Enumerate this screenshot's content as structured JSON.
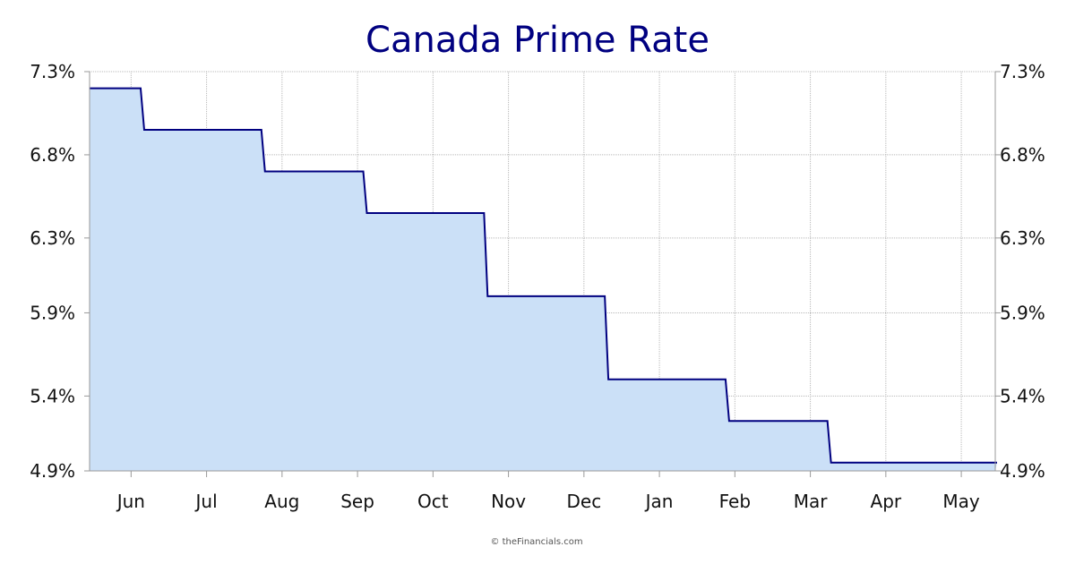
{
  "chart_data": {
    "type": "area",
    "title": "Canada Prime Rate",
    "xlabel": "",
    "ylabel": "",
    "step": true,
    "y_ticks": [
      "4.9%",
      "5.4%",
      "5.9%",
      "6.3%",
      "6.8%",
      "7.3%"
    ],
    "y_tick_values": [
      4.9,
      5.35,
      5.85,
      6.3,
      6.8,
      7.3
    ],
    "ylim": [
      4.9,
      7.3
    ],
    "xlim": [
      0,
      12
    ],
    "x_ticks": [
      "Jun",
      "Jul",
      "Aug",
      "Sep",
      "Oct",
      "Nov",
      "Dec",
      "Jan",
      "Feb",
      "Mar",
      "Apr",
      "May"
    ],
    "x_tick_values": [
      0.55,
      1.55,
      2.55,
      3.55,
      4.55,
      5.55,
      6.55,
      7.55,
      8.55,
      9.55,
      10.55,
      11.55
    ],
    "grid": true,
    "series": [
      {
        "name": "",
        "x": [
          0,
          0.7,
          2.3,
          3.65,
          5.25,
          6.85,
          8.45,
          9.8,
          12
        ],
        "values": [
          7.2,
          6.95,
          6.7,
          6.45,
          5.95,
          5.45,
          5.2,
          4.95,
          4.95
        ]
      }
    ],
    "colors": {
      "line": "#000080",
      "fill": "#cbe0f7",
      "grid": "#b8b8b8"
    },
    "footer": "© theFinancials.com"
  }
}
